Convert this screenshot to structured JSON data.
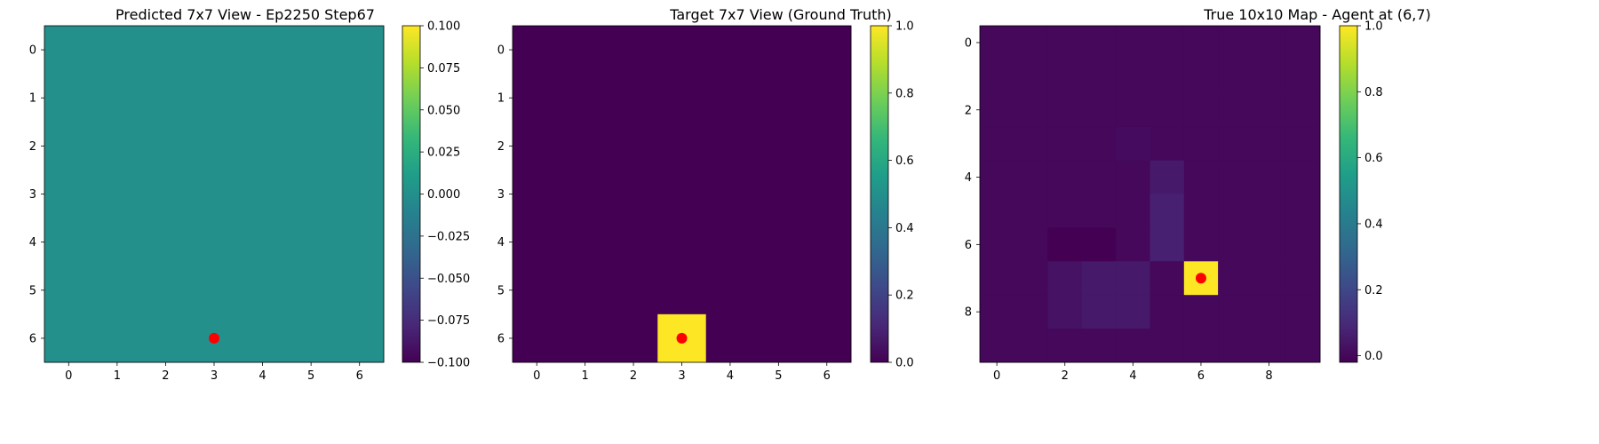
{
  "colormap": [
    "#440154",
    "#482878",
    "#3e4989",
    "#31688e",
    "#26828e",
    "#1f9e89",
    "#35b779",
    "#6ece58",
    "#b5de2b",
    "#fde725"
  ],
  "marker_color": "#ff0000",
  "chart_data": [
    {
      "type": "heatmap",
      "title": "Predicted 7x7 View - Ep2250 Step67",
      "rows": 7,
      "cols": 7,
      "x_ticks": [
        0,
        1,
        2,
        3,
        4,
        5,
        6
      ],
      "y_ticks": [
        0,
        1,
        2,
        3,
        4,
        5,
        6
      ],
      "vmin": -0.1,
      "vmax": 0.1,
      "colorbar_ticks": [
        0.1,
        0.075,
        0.05,
        0.025,
        0.0,
        -0.025,
        -0.05,
        -0.075,
        -0.1
      ],
      "colorbar_labels": [
        "0.100",
        "0.075",
        "0.050",
        "0.025",
        "0.000",
        "−0.025",
        "−0.050",
        "−0.075",
        "−0.100"
      ],
      "values": [
        [
          0,
          0,
          0,
          0,
          0,
          0,
          0
        ],
        [
          0,
          0,
          0,
          0,
          0,
          0,
          0
        ],
        [
          0,
          0,
          0,
          0,
          0,
          0,
          0
        ],
        [
          0,
          0,
          0,
          0,
          0,
          0,
          0
        ],
        [
          0,
          0,
          0,
          0,
          0,
          0,
          0
        ],
        [
          0,
          0,
          0,
          0,
          0,
          0,
          0
        ],
        [
          0,
          0,
          0,
          0,
          0,
          0,
          0
        ]
      ],
      "marker": {
        "x": 3,
        "y": 6
      }
    },
    {
      "type": "heatmap",
      "title": "Target 7x7 View (Ground Truth)",
      "rows": 7,
      "cols": 7,
      "x_ticks": [
        0,
        1,
        2,
        3,
        4,
        5,
        6
      ],
      "y_ticks": [
        0,
        1,
        2,
        3,
        4,
        5,
        6
      ],
      "vmin": 0,
      "vmax": 1,
      "colorbar_ticks": [
        1.0,
        0.8,
        0.6,
        0.4,
        0.2,
        0.0
      ],
      "colorbar_labels": [
        "1.0",
        "0.8",
        "0.6",
        "0.4",
        "0.2",
        "0.0"
      ],
      "values": [
        [
          0,
          0,
          0,
          0,
          0,
          0,
          0
        ],
        [
          0,
          0,
          0,
          0,
          0,
          0,
          0
        ],
        [
          0,
          0,
          0,
          0,
          0,
          0,
          0
        ],
        [
          0,
          0,
          0,
          0,
          0,
          0,
          0
        ],
        [
          0,
          0,
          0,
          0,
          0,
          0,
          0
        ],
        [
          0,
          0,
          0,
          0,
          0,
          0,
          0
        ],
        [
          0,
          0,
          0,
          1,
          0,
          0,
          0
        ]
      ],
      "marker": {
        "x": 3,
        "y": 6
      }
    },
    {
      "type": "heatmap",
      "title": "True 10x10 Map - Agent at (6,7)",
      "rows": 10,
      "cols": 10,
      "x_ticks": [
        0,
        2,
        4,
        6,
        8
      ],
      "y_ticks": [
        0,
        2,
        4,
        6,
        8
      ],
      "vmin": -0.02,
      "vmax": 1,
      "colorbar_ticks": [
        1.0,
        0.8,
        0.6,
        0.4,
        0.2,
        0.0
      ],
      "colorbar_labels": [
        "1.0",
        "0.8",
        "0.6",
        "0.4",
        "0.2",
        "0.0"
      ],
      "values": [
        [
          0,
          0,
          0,
          0,
          0,
          0,
          0,
          0,
          0,
          0
        ],
        [
          0,
          0,
          0,
          0,
          0,
          0,
          0,
          0,
          0,
          0
        ],
        [
          0,
          0,
          0,
          0,
          0,
          0,
          0,
          0,
          0,
          0
        ],
        [
          0,
          0,
          0,
          0,
          0.01,
          0,
          0,
          0,
          0,
          0
        ],
        [
          0,
          0,
          0,
          0,
          0,
          0.05,
          0,
          0,
          0,
          0
        ],
        [
          0,
          0,
          0,
          0,
          0,
          0.07,
          0,
          0,
          0,
          0
        ],
        [
          0,
          0,
          -0.02,
          -0.02,
          0,
          0.07,
          0,
          0,
          0,
          0
        ],
        [
          0,
          0,
          0.03,
          0.05,
          0.05,
          0,
          1.0,
          0,
          0,
          0
        ],
        [
          0,
          0,
          0.03,
          0.05,
          0.05,
          0,
          0,
          0,
          0,
          0
        ],
        [
          0,
          0,
          0,
          0,
          0,
          0,
          0,
          0,
          0,
          0
        ]
      ],
      "marker": {
        "x": 6,
        "y": 7
      }
    }
  ]
}
